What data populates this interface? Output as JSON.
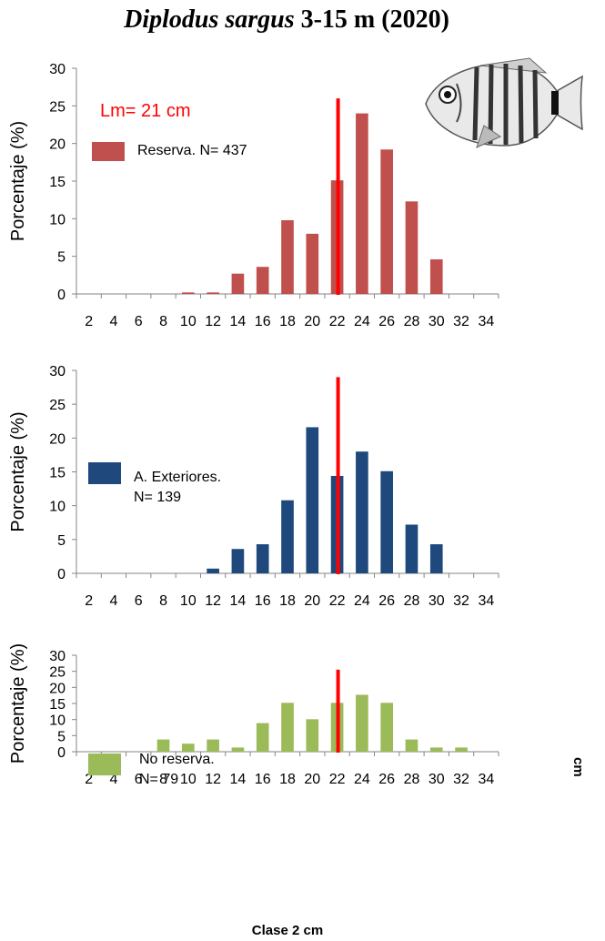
{
  "title": {
    "species": "Diplodus sargus",
    "rest": "3-15 m (2020)"
  },
  "annotation": "Lm= 21 cm",
  "xlabel_bottom": "Clase 2 cm",
  "stray_text": "cm",
  "colors": {
    "reserva": "#c0504d",
    "exteriores": "#1f497d",
    "noreserva": "#9bbb59",
    "lm_line": "#ff0000"
  },
  "chart_data": [
    {
      "type": "bar",
      "categories": [
        "2",
        "4",
        "6",
        "8",
        "10",
        "12",
        "14",
        "16",
        "18",
        "20",
        "22",
        "24",
        "26",
        "28",
        "30",
        "32",
        "34"
      ],
      "series": [
        {
          "name": "Reserva. N= 437",
          "values": [
            0,
            0,
            0,
            0,
            0.2,
            0.2,
            2.7,
            3.6,
            9.8,
            8.0,
            15.1,
            24.0,
            19.2,
            12.3,
            4.6,
            0,
            0
          ]
        }
      ],
      "legend": [
        "Reserva. N= 437"
      ],
      "ylabel": "Porcentaje (%)",
      "ylim": [
        0,
        30
      ],
      "yticks": [
        0,
        5,
        10,
        15,
        20,
        25,
        30
      ],
      "ref_line_x": 22,
      "ref_line_top": 26
    },
    {
      "type": "bar",
      "categories": [
        "2",
        "4",
        "6",
        "8",
        "10",
        "12",
        "14",
        "16",
        "18",
        "20",
        "22",
        "24",
        "26",
        "28",
        "30",
        "32",
        "34"
      ],
      "series": [
        {
          "name": "A. Exteriores. N= 139",
          "values": [
            0,
            0,
            0,
            0,
            0,
            0.7,
            3.6,
            4.3,
            10.8,
            21.6,
            14.4,
            18.0,
            15.1,
            7.2,
            4.3,
            0,
            0
          ]
        }
      ],
      "legend": [
        "A. Exteriores.",
        "N= 139"
      ],
      "ylabel": "Porcentaje (%)",
      "ylim": [
        0,
        30
      ],
      "yticks": [
        0,
        5,
        10,
        15,
        20,
        25,
        30
      ],
      "ref_line_x": 22,
      "ref_line_top": 29
    },
    {
      "type": "bar",
      "categories": [
        "2",
        "4",
        "6",
        "8",
        "10",
        "12",
        "14",
        "16",
        "18",
        "20",
        "22",
        "24",
        "26",
        "28",
        "30",
        "32",
        "34"
      ],
      "series": [
        {
          "name": "No reserva. N= 79",
          "values": [
            0,
            0,
            0,
            3.8,
            2.5,
            3.8,
            1.3,
            8.9,
            15.2,
            10.1,
            15.2,
            17.7,
            15.2,
            3.8,
            1.3,
            1.3,
            0
          ]
        }
      ],
      "legend": [
        "No reserva.",
        "N= 79"
      ],
      "ylabel": "Porcentaje (%)",
      "ylim": [
        0,
        30
      ],
      "yticks": [
        0,
        5,
        10,
        15,
        20,
        25,
        30
      ],
      "ref_line_x": 22,
      "ref_line_top": 25.5
    }
  ]
}
